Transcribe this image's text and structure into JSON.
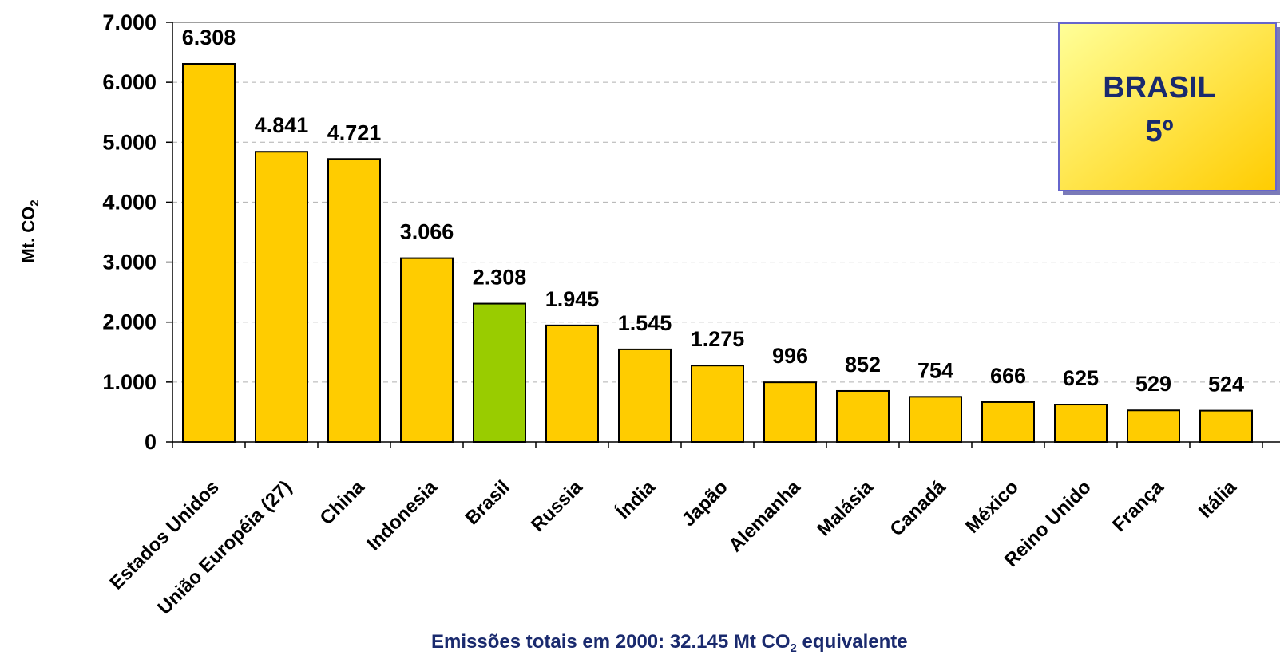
{
  "chart_data": {
    "type": "bar",
    "categories": [
      "Estados Unidos",
      "União Européia (27)",
      "China",
      "Indonesia",
      "Brasil",
      "Russia",
      "Índia",
      "Japão",
      "Alemanha",
      "Malásia",
      "Canadá",
      "México",
      "Reino Unido",
      "França",
      "Itália"
    ],
    "values": [
      6308,
      4841,
      4721,
      3066,
      2308,
      1945,
      1545,
      1275,
      996,
      852,
      754,
      666,
      625,
      529,
      524
    ],
    "value_labels": [
      "6.308",
      "4.841",
      "4.721",
      "3.066",
      "2.308",
      "1.945",
      "1.545",
      "1.275",
      "996",
      "852",
      "754",
      "666",
      "625",
      "529",
      "524"
    ],
    "ylim": [
      0,
      7000
    ],
    "yticks": [
      0,
      1000,
      2000,
      3000,
      4000,
      5000,
      6000,
      7000
    ],
    "ytick_labels": [
      "0",
      "1.000",
      "2.000",
      "3.000",
      "4.000",
      "5.000",
      "6.000",
      "7.000"
    ],
    "ylabel_main": "Mt. CO",
    "ylabel_sub": "2",
    "xlabel": "",
    "title": "",
    "grid": true,
    "highlight_category": "Brasil",
    "colors": {
      "bar": "#ffcc00",
      "highlight": "#99cc00",
      "bar_border": "#000000",
      "grid": "#b0b0b0"
    }
  },
  "callout": {
    "line1": "BRASIL",
    "line2": "5º",
    "fill_top": "#ffff99",
    "fill_bottom": "#ffcc00",
    "border": "#6666cc"
  },
  "footer": {
    "prefix": "Emissões totais em 2000: 32.145 Mt CO",
    "sub": "2",
    "suffix": " equivalente"
  }
}
